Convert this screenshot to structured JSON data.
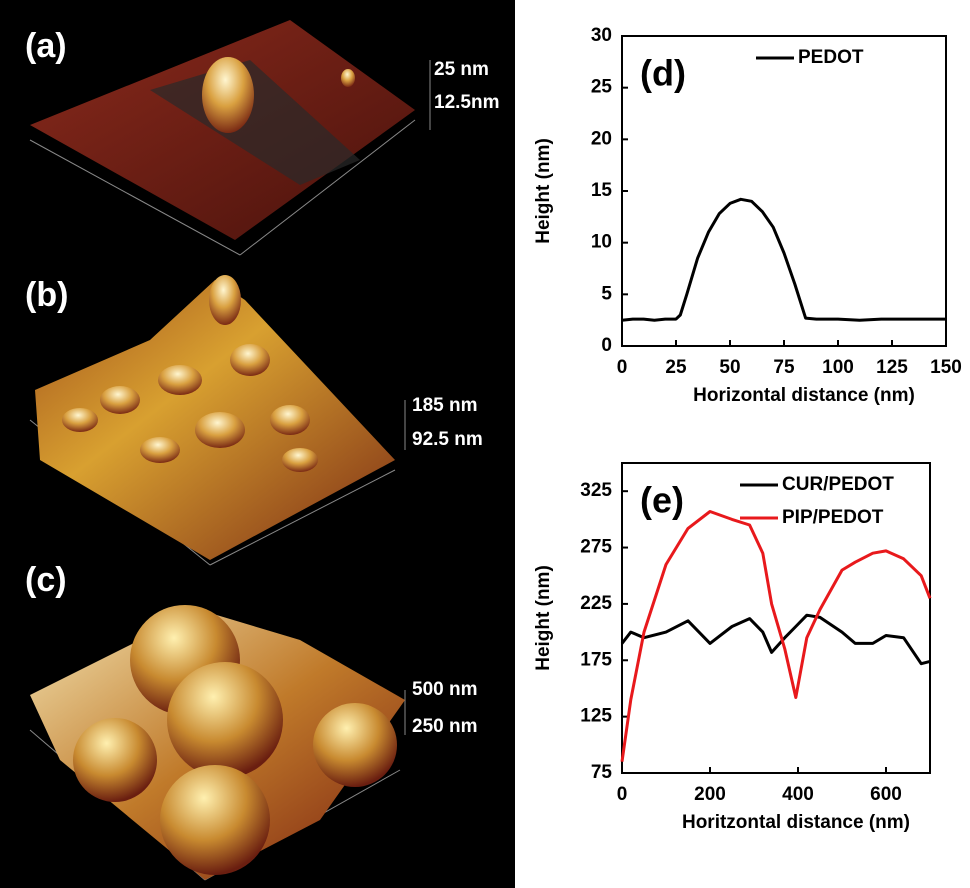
{
  "afm_panels": [
    {
      "label": "(a)",
      "scale_labels": [
        "25 nm",
        "12.5nm"
      ]
    },
    {
      "label": "(b)",
      "scale_labels": [
        "185 nm",
        "92.5 nm"
      ]
    },
    {
      "label": "(c)",
      "scale_labels": [
        "500 nm",
        "250 nm"
      ]
    }
  ],
  "chart_data": [
    {
      "type": "line",
      "label": "(d)",
      "xlabel": "Horizontal distance (nm)",
      "ylabel": "Height (nm)",
      "x": [
        0,
        5,
        10,
        15,
        20,
        25,
        27,
        30,
        35,
        40,
        45,
        50,
        55,
        60,
        65,
        70,
        75,
        80,
        85,
        90,
        100,
        110,
        120,
        130,
        140,
        150
      ],
      "series": [
        {
          "name": "PEDOT",
          "color": "#000000",
          "values": [
            2.5,
            2.6,
            2.6,
            2.5,
            2.6,
            2.6,
            3,
            5,
            8.5,
            11,
            12.8,
            13.8,
            14.2,
            14,
            13,
            11.5,
            9,
            6,
            2.7,
            2.6,
            2.6,
            2.5,
            2.6,
            2.6,
            2.6,
            2.6
          ]
        }
      ],
      "xlim": [
        0,
        150
      ],
      "xticks": [
        0,
        25,
        50,
        75,
        100,
        125,
        150
      ],
      "ylim": [
        0,
        30
      ],
      "yticks": [
        0,
        5,
        10,
        15,
        20,
        25,
        30
      ],
      "legend": "upper right"
    },
    {
      "type": "line",
      "label": "(e)",
      "xlabel": "Horitzontal distance (nm)",
      "ylabel": "Height (nm)",
      "x": [
        0,
        20,
        50,
        100,
        150,
        200,
        250,
        290,
        320,
        340,
        370,
        395,
        420,
        450,
        500,
        530,
        570,
        600,
        640,
        680,
        700
      ],
      "series": [
        {
          "name": "CUR/PEDOT",
          "color": "#000000",
          "values": [
            190,
            200,
            195,
            200,
            210,
            190,
            205,
            212,
            200,
            182,
            195,
            205,
            215,
            213,
            200,
            190,
            190,
            197,
            195,
            172,
            174
          ]
        },
        {
          "name": "PIP/PEDOT",
          "color": "#e8191c",
          "values": [
            85,
            140,
            200,
            260,
            292,
            307,
            300,
            295,
            270,
            225,
            185,
            142,
            195,
            220,
            255,
            262,
            270,
            272,
            265,
            250,
            230
          ]
        }
      ],
      "xlim": [
        0,
        700
      ],
      "xticks": [
        0,
        200,
        400,
        600
      ],
      "ylim": [
        75,
        350
      ],
      "yticks": [
        75,
        125,
        175,
        225,
        275,
        325
      ],
      "legend": "upper right"
    }
  ]
}
